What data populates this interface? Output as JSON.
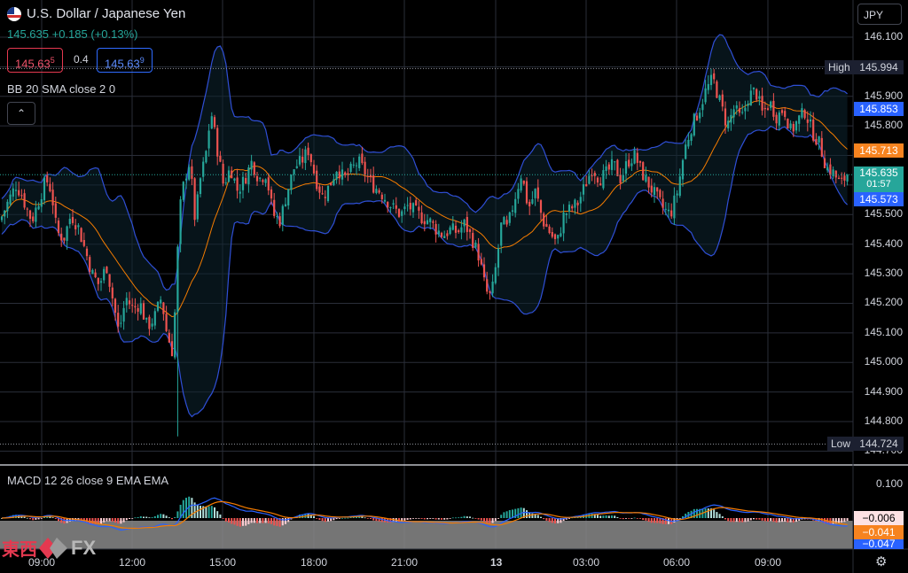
{
  "header": {
    "title": "U.S. Dollar / Japanese Yen",
    "price": "145.635",
    "change": "+0.185 (+0.13%)",
    "bid": "145.63",
    "bid_sup": "5",
    "spread": "0.4",
    "ask": "145.63",
    "ask_sup": "9",
    "currency": "JPY"
  },
  "indicators": {
    "bb": "BB 20 SMA close 2 0",
    "macd": "MACD 12 26 close 9 EMA EMA"
  },
  "price_axis": {
    "ticks": [
      "146.100",
      "145.900",
      "145.800",
      "145.600",
      "145.500",
      "145.400",
      "145.300",
      "145.200",
      "145.100",
      "145.000",
      "144.900",
      "144.800",
      "144.700"
    ],
    "high_label": "High",
    "high": "145.994",
    "low_label": "Low",
    "low": "144.724",
    "bb_upper": "145.853",
    "bb_middle": "145.713",
    "last": "145.635",
    "countdown": "01:57",
    "bb_lower": "145.573"
  },
  "macd_axis": {
    "tick": "0.100",
    "hist": "−0.006",
    "signal": "−0.041",
    "macd": "−0.047"
  },
  "time_axis": [
    "09:00",
    "12:00",
    "15:00",
    "18:00",
    "21:00",
    "13",
    "03:00",
    "06:00",
    "09:00"
  ],
  "logo": {
    "cjk": "東西",
    "fx": "FX"
  },
  "colors": {
    "up": "#26a69a",
    "down": "#ef5350",
    "bb_band": "#2f4fd6",
    "bb_basis": "#f57c00",
    "accent_blue": "#2962ff",
    "orange": "#f7831f"
  },
  "chart_data": {
    "type": "candlestick",
    "symbol": "U.S. Dollar / Japanese Yen",
    "ylim": [
      144.7,
      146.13
    ],
    "x_labels": [
      "09:00",
      "12:00",
      "15:00",
      "18:00",
      "21:00",
      "13",
      "03:00",
      "06:00",
      "09:00"
    ],
    "close_path": [
      [
        0,
        145.48
      ],
      [
        10,
        145.55
      ],
      [
        18,
        145.6
      ],
      [
        24,
        145.57
      ],
      [
        30,
        145.52
      ],
      [
        36,
        145.48
      ],
      [
        44,
        145.55
      ],
      [
        52,
        145.62
      ],
      [
        58,
        145.58
      ],
      [
        64,
        145.44
      ],
      [
        72,
        145.42
      ],
      [
        80,
        145.5
      ],
      [
        88,
        145.46
      ],
      [
        96,
        145.38
      ],
      [
        104,
        145.3
      ],
      [
        112,
        145.26
      ],
      [
        120,
        145.33
      ],
      [
        128,
        145.2
      ],
      [
        134,
        145.1
      ],
      [
        142,
        145.22
      ],
      [
        150,
        145.18
      ],
      [
        158,
        145.2
      ],
      [
        166,
        145.12
      ],
      [
        174,
        145.15
      ],
      [
        182,
        145.22
      ],
      [
        188,
        145.1
      ],
      [
        194,
        145.04
      ],
      [
        198,
        145.2
      ],
      [
        202,
        145.5
      ],
      [
        208,
        145.62
      ],
      [
        214,
        145.68
      ],
      [
        220,
        145.48
      ],
      [
        226,
        145.62
      ],
      [
        232,
        145.7
      ],
      [
        238,
        145.85
      ],
      [
        244,
        145.74
      ],
      [
        252,
        145.6
      ],
      [
        260,
        145.66
      ],
      [
        268,
        145.58
      ],
      [
        276,
        145.62
      ],
      [
        284,
        145.68
      ],
      [
        292,
        145.62
      ],
      [
        300,
        145.64
      ],
      [
        308,
        145.5
      ],
      [
        316,
        145.48
      ],
      [
        324,
        145.58
      ],
      [
        332,
        145.66
      ],
      [
        340,
        145.68
      ],
      [
        348,
        145.72
      ],
      [
        356,
        145.62
      ],
      [
        364,
        145.56
      ],
      [
        372,
        145.6
      ],
      [
        380,
        145.66
      ],
      [
        388,
        145.62
      ],
      [
        396,
        145.65
      ],
      [
        404,
        145.68
      ],
      [
        412,
        145.64
      ],
      [
        420,
        145.6
      ],
      [
        428,
        145.58
      ],
      [
        436,
        145.55
      ],
      [
        444,
        145.52
      ],
      [
        452,
        145.5
      ],
      [
        460,
        145.53
      ],
      [
        468,
        145.51
      ],
      [
        476,
        145.49
      ],
      [
        484,
        145.48
      ],
      [
        492,
        145.45
      ],
      [
        500,
        145.43
      ],
      [
        508,
        145.45
      ],
      [
        516,
        145.44
      ],
      [
        524,
        145.47
      ],
      [
        532,
        145.42
      ],
      [
        540,
        145.36
      ],
      [
        548,
        145.24
      ],
      [
        554,
        145.22
      ],
      [
        560,
        145.34
      ],
      [
        566,
        145.48
      ],
      [
        572,
        145.45
      ],
      [
        580,
        145.55
      ],
      [
        588,
        145.64
      ],
      [
        596,
        145.52
      ],
      [
        604,
        145.58
      ],
      [
        612,
        145.48
      ],
      [
        620,
        145.44
      ],
      [
        628,
        145.4
      ],
      [
        636,
        145.5
      ],
      [
        644,
        145.52
      ],
      [
        652,
        145.54
      ],
      [
        660,
        145.6
      ],
      [
        668,
        145.66
      ],
      [
        676,
        145.62
      ],
      [
        684,
        145.64
      ],
      [
        692,
        145.67
      ],
      [
        700,
        145.62
      ],
      [
        708,
        145.68
      ],
      [
        716,
        145.7
      ],
      [
        724,
        145.64
      ],
      [
        732,
        145.6
      ],
      [
        740,
        145.56
      ],
      [
        748,
        145.52
      ],
      [
        756,
        145.5
      ],
      [
        764,
        145.58
      ],
      [
        772,
        145.72
      ],
      [
        780,
        145.8
      ],
      [
        788,
        145.85
      ],
      [
        796,
        145.92
      ],
      [
        804,
        145.96
      ],
      [
        812,
        145.88
      ],
      [
        820,
        145.8
      ],
      [
        828,
        145.86
      ],
      [
        836,
        145.82
      ],
      [
        844,
        145.9
      ],
      [
        852,
        145.92
      ],
      [
        860,
        145.84
      ],
      [
        868,
        145.88
      ],
      [
        876,
        145.83
      ],
      [
        884,
        145.86
      ],
      [
        892,
        145.78
      ],
      [
        900,
        145.82
      ],
      [
        908,
        145.85
      ],
      [
        916,
        145.78
      ],
      [
        924,
        145.74
      ],
      [
        932,
        145.66
      ],
      [
        940,
        145.64
      ],
      [
        948,
        145.6
      ],
      [
        956,
        145.64
      ]
    ]
  }
}
